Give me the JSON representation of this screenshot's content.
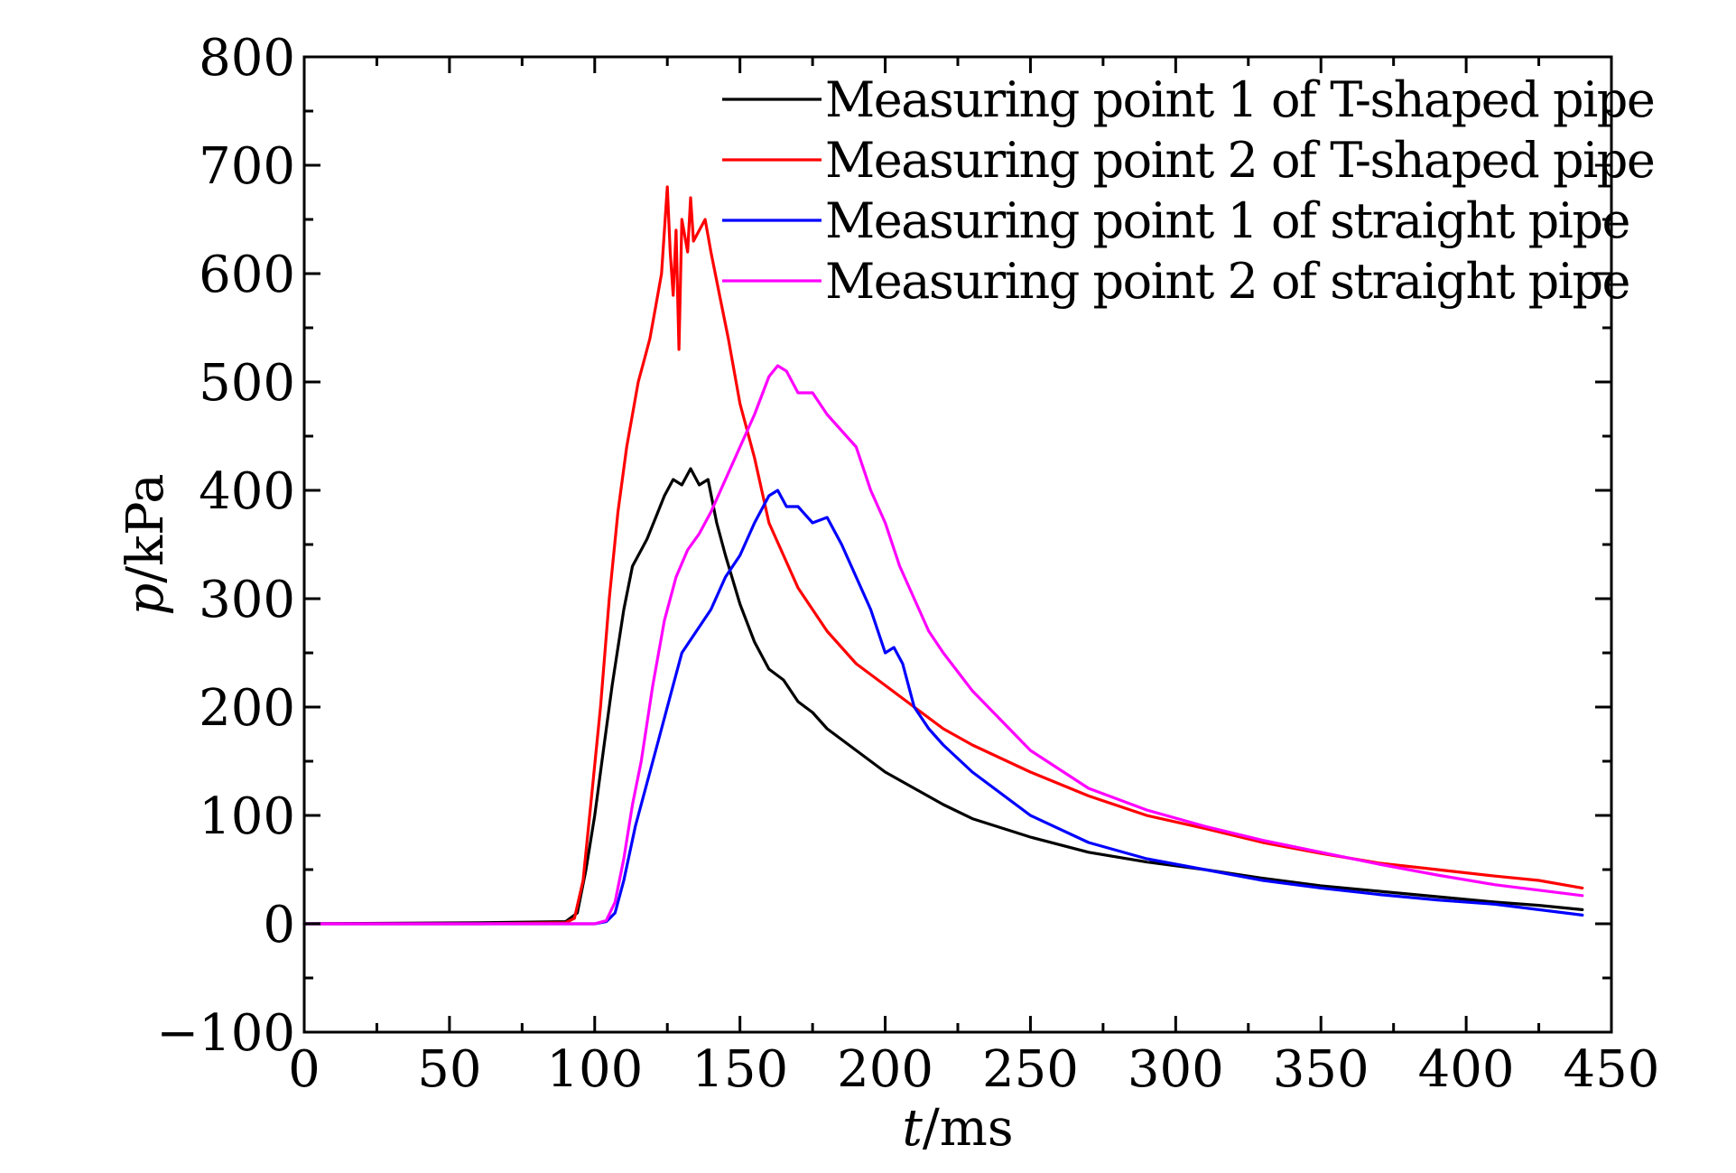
{
  "chart_data": {
    "type": "line",
    "title": "",
    "xlabel_var": "t",
    "xlabel_unit": "/ms",
    "ylabel_var": "p",
    "ylabel_unit": "/kPa",
    "xlim": [
      0,
      450
    ],
    "ylim": [
      -100,
      800
    ],
    "xticks": [
      0,
      50,
      100,
      150,
      200,
      250,
      300,
      350,
      400,
      450
    ],
    "yticks": [
      -100,
      0,
      100,
      200,
      300,
      400,
      500,
      600,
      700,
      800
    ],
    "ytick_labels": [
      "−100",
      "0",
      "100",
      "200",
      "300",
      "400",
      "500",
      "600",
      "700",
      "800"
    ],
    "grid": false,
    "legend_position": "top-right",
    "series": [
      {
        "name": "Measuring point 1 of T-shaped pipe",
        "color": "#000000",
        "x": [
          0,
          60,
          90,
          94,
          97,
          100,
          103,
          106,
          110,
          113,
          116,
          118,
          121,
          124,
          127,
          130,
          133,
          136,
          139,
          142,
          145,
          150,
          155,
          160,
          165,
          170,
          175,
          180,
          190,
          200,
          210,
          220,
          230,
          250,
          270,
          290,
          310,
          330,
          350,
          370,
          390,
          410,
          425,
          440
        ],
        "y": [
          0,
          1,
          2,
          10,
          50,
          100,
          160,
          220,
          290,
          330,
          345,
          355,
          375,
          395,
          410,
          405,
          420,
          405,
          410,
          370,
          340,
          295,
          260,
          235,
          225,
          205,
          195,
          180,
          160,
          140,
          125,
          110,
          97,
          80,
          66,
          57,
          50,
          42,
          35,
          30,
          25,
          20,
          17,
          13
        ]
      },
      {
        "name": "Measuring point 2 of T-shaped pipe",
        "color": "#ff0000",
        "x": [
          0,
          60,
          90,
          93,
          96,
          99,
          102,
          105,
          108,
          111,
          113,
          115,
          117,
          119,
          121,
          123,
          125,
          126,
          127,
          128,
          129,
          130,
          132,
          133,
          134,
          136,
          138,
          140,
          143,
          146,
          150,
          155,
          160,
          165,
          170,
          180,
          190,
          200,
          210,
          220,
          230,
          250,
          270,
          290,
          310,
          330,
          350,
          370,
          390,
          410,
          425,
          440
        ],
        "y": [
          0,
          0,
          1,
          5,
          40,
          120,
          200,
          300,
          380,
          440,
          470,
          500,
          520,
          540,
          570,
          600,
          680,
          620,
          580,
          640,
          530,
          650,
          620,
          670,
          630,
          640,
          650,
          620,
          580,
          540,
          480,
          430,
          370,
          340,
          310,
          270,
          240,
          220,
          200,
          180,
          165,
          140,
          118,
          100,
          88,
          75,
          65,
          56,
          50,
          44,
          40,
          33
        ]
      },
      {
        "name": "Measuring point 1 of straight pipe",
        "color": "#0000ff",
        "x": [
          0,
          60,
          100,
          104,
          107,
          110,
          114,
          118,
          122,
          126,
          130,
          135,
          140,
          145,
          150,
          155,
          160,
          163,
          166,
          170,
          175,
          180,
          185,
          190,
          195,
          200,
          203,
          206,
          210,
          215,
          220,
          230,
          250,
          270,
          290,
          310,
          330,
          350,
          370,
          390,
          410,
          425,
          440
        ],
        "y": [
          0,
          0,
          0,
          2,
          10,
          40,
          90,
          130,
          170,
          210,
          250,
          270,
          290,
          320,
          340,
          370,
          395,
          400,
          385,
          385,
          370,
          375,
          350,
          320,
          290,
          250,
          255,
          240,
          200,
          180,
          165,
          140,
          100,
          75,
          60,
          50,
          40,
          33,
          27,
          22,
          18,
          13,
          8
        ]
      },
      {
        "name": "Measuring point 2 of straight pipe",
        "color": "#ff00ff",
        "x": [
          0,
          60,
          100,
          104,
          107,
          110,
          113,
          116,
          120,
          124,
          128,
          132,
          136,
          140,
          145,
          150,
          155,
          160,
          163,
          166,
          170,
          175,
          180,
          185,
          190,
          195,
          200,
          205,
          210,
          215,
          220,
          230,
          250,
          270,
          290,
          310,
          330,
          350,
          370,
          390,
          410,
          425,
          440
        ],
        "y": [
          0,
          0,
          0,
          3,
          20,
          60,
          110,
          150,
          220,
          280,
          320,
          345,
          360,
          380,
          410,
          440,
          470,
          505,
          515,
          510,
          490,
          490,
          470,
          455,
          440,
          400,
          370,
          330,
          300,
          270,
          250,
          215,
          160,
          125,
          105,
          90,
          77,
          66,
          55,
          45,
          36,
          31,
          26
        ]
      }
    ]
  }
}
